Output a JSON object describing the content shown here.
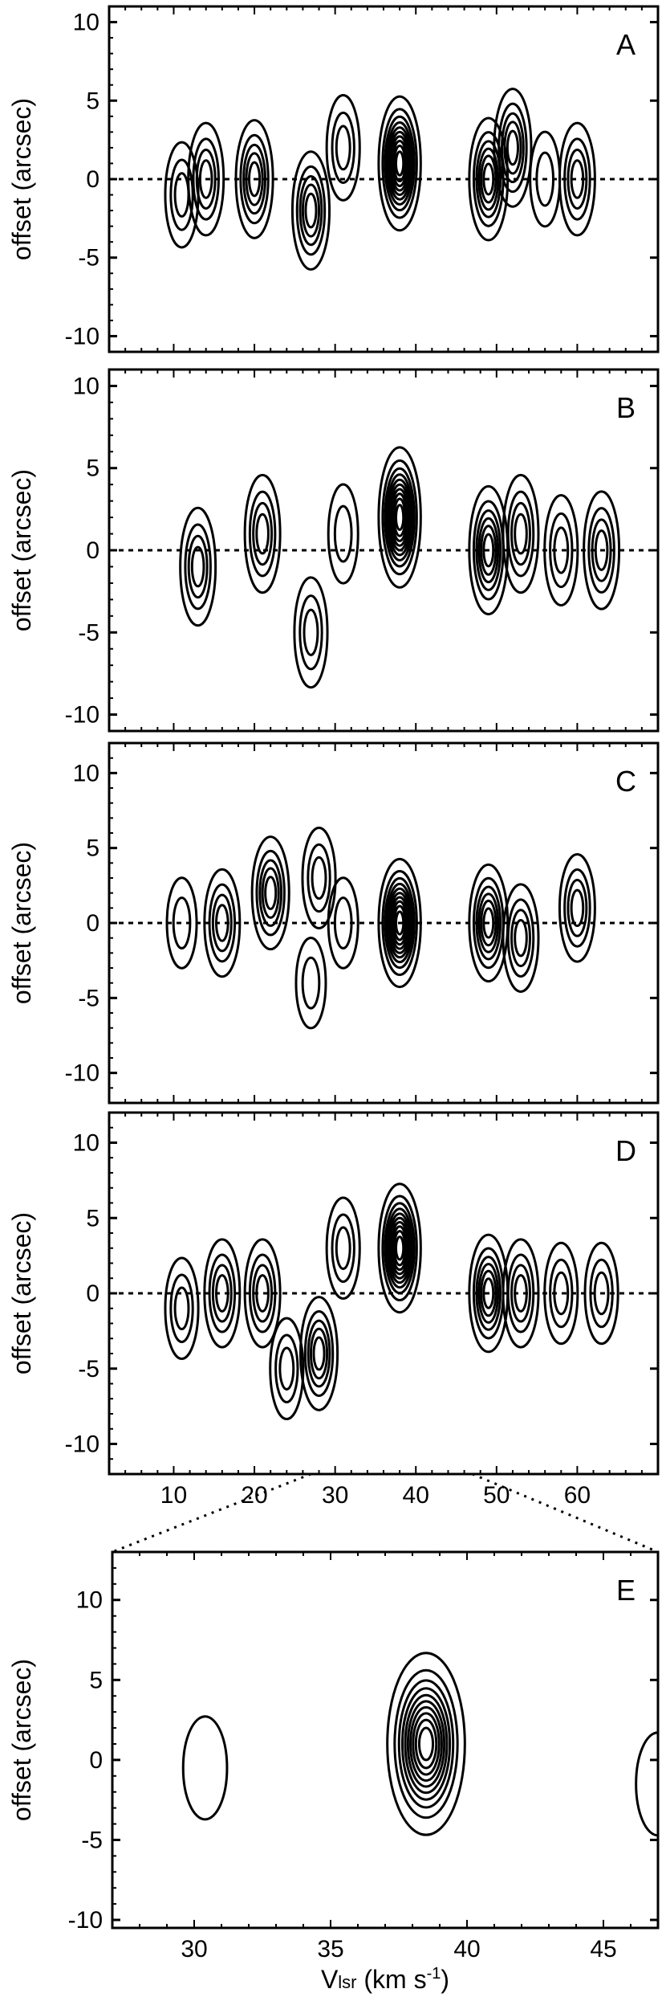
{
  "colors": {
    "ink": "#000000",
    "background": "#ffffff"
  },
  "chart_data": [
    {
      "type": "contour",
      "panel": "A",
      "xlim": [
        2,
        70
      ],
      "ylim": [
        -11,
        11
      ],
      "y_ticks": [
        10,
        5,
        0,
        -5,
        -10
      ],
      "x_ticks": [],
      "ylabel": "offset (arcsec)",
      "xlabel": "",
      "reference_line_y": 0,
      "components": [
        {
          "x": 11,
          "y": -1,
          "peak": 3
        },
        {
          "x": 14,
          "y": 0,
          "peak": 4
        },
        {
          "x": 20,
          "y": 0,
          "peak": 5
        },
        {
          "x": 27,
          "y": -2,
          "peak": 5
        },
        {
          "x": 31,
          "y": 2,
          "peak": 3
        },
        {
          "x": 38,
          "y": 1,
          "peak": 10
        },
        {
          "x": 49,
          "y": 0,
          "peak": 6
        },
        {
          "x": 52,
          "y": 2,
          "peak": 5
        },
        {
          "x": 56,
          "y": 0,
          "peak": 2
        },
        {
          "x": 60,
          "y": 0,
          "peak": 4
        }
      ]
    },
    {
      "type": "contour",
      "panel": "B",
      "xlim": [
        2,
        70
      ],
      "ylim": [
        -11,
        11
      ],
      "y_ticks": [
        10,
        5,
        0,
        -5,
        -10
      ],
      "x_ticks": [],
      "ylabel": "offset (arcsec)",
      "xlabel": "",
      "reference_line_y": 0,
      "components": [
        {
          "x": 13,
          "y": -1,
          "peak": 4
        },
        {
          "x": 21,
          "y": 1,
          "peak": 4
        },
        {
          "x": 27,
          "y": -5,
          "peak": 3
        },
        {
          "x": 31,
          "y": 1,
          "peak": 2
        },
        {
          "x": 38,
          "y": 2,
          "peak": 10
        },
        {
          "x": 49,
          "y": 0,
          "peak": 6
        },
        {
          "x": 53,
          "y": 1,
          "peak": 4
        },
        {
          "x": 58,
          "y": 0,
          "peak": 3
        },
        {
          "x": 63,
          "y": 0,
          "peak": 4
        }
      ]
    },
    {
      "type": "contour",
      "panel": "C",
      "xlim": [
        2,
        70
      ],
      "ylim": [
        -12,
        12
      ],
      "y_ticks": [
        10,
        5,
        0,
        -5,
        -10
      ],
      "x_ticks": [],
      "ylabel": "offset (arcsec)",
      "xlabel": "",
      "reference_line_y": 0,
      "components": [
        {
          "x": 11,
          "y": 0,
          "peak": 2
        },
        {
          "x": 16,
          "y": 0,
          "peak": 4
        },
        {
          "x": 22,
          "y": 2,
          "peak": 5
        },
        {
          "x": 27,
          "y": -4,
          "peak": 2
        },
        {
          "x": 28,
          "y": 3,
          "peak": 3
        },
        {
          "x": 31,
          "y": 0,
          "peak": 2
        },
        {
          "x": 38,
          "y": 0,
          "peak": 10
        },
        {
          "x": 49,
          "y": 0,
          "peak": 6
        },
        {
          "x": 53,
          "y": -1,
          "peak": 4
        },
        {
          "x": 60,
          "y": 1,
          "peak": 4
        }
      ]
    },
    {
      "type": "contour",
      "panel": "D",
      "xlim": [
        2,
        70
      ],
      "ylim": [
        -12,
        12
      ],
      "y_ticks": [
        10,
        5,
        0,
        -5,
        -10
      ],
      "x_ticks": [
        10,
        20,
        30,
        40,
        50,
        60
      ],
      "ylabel": "offset (arcsec)",
      "xlabel": "",
      "reference_line_y": 0,
      "components": [
        {
          "x": 11,
          "y": -1,
          "peak": 3
        },
        {
          "x": 16,
          "y": 0,
          "peak": 4
        },
        {
          "x": 21,
          "y": 0,
          "peak": 4
        },
        {
          "x": 24,
          "y": -5,
          "peak": 3
        },
        {
          "x": 28,
          "y": -4,
          "peak": 5
        },
        {
          "x": 31,
          "y": 3,
          "peak": 3
        },
        {
          "x": 38,
          "y": 3,
          "peak": 10
        },
        {
          "x": 49,
          "y": 0,
          "peak": 6
        },
        {
          "x": 53,
          "y": 0,
          "peak": 4
        },
        {
          "x": 58,
          "y": 0,
          "peak": 3
        },
        {
          "x": 63,
          "y": 0,
          "peak": 3
        }
      ]
    },
    {
      "type": "contour",
      "panel": "E",
      "xlim": [
        27,
        47
      ],
      "ylim": [
        -10.5,
        13
      ],
      "y_ticks": [
        10,
        5,
        0,
        -5,
        -10
      ],
      "x_ticks": [
        30,
        35,
        40,
        45
      ],
      "ylabel": "offset (arcsec)",
      "xlabel": "Vlsr (km s-1)",
      "reference_line_y": null,
      "zoom_of_panel_D_x_range": [
        27,
        47
      ],
      "components": [
        {
          "x": 30.4,
          "y": -0.5,
          "peak": 1
        },
        {
          "x": 38.5,
          "y": 1,
          "peak": 10
        },
        {
          "x": 47,
          "y": -1.5,
          "peak": 1
        }
      ]
    }
  ],
  "labels": {
    "panel_letters": [
      "A",
      "B",
      "C",
      "D",
      "E"
    ],
    "ylabel": "offset (arcsec)",
    "xlabel_main": "V",
    "xlabel_sub": "lsr",
    "xlabel_units": " (km s",
    "xlabel_exp": "-1",
    "xlabel_close": ")"
  }
}
